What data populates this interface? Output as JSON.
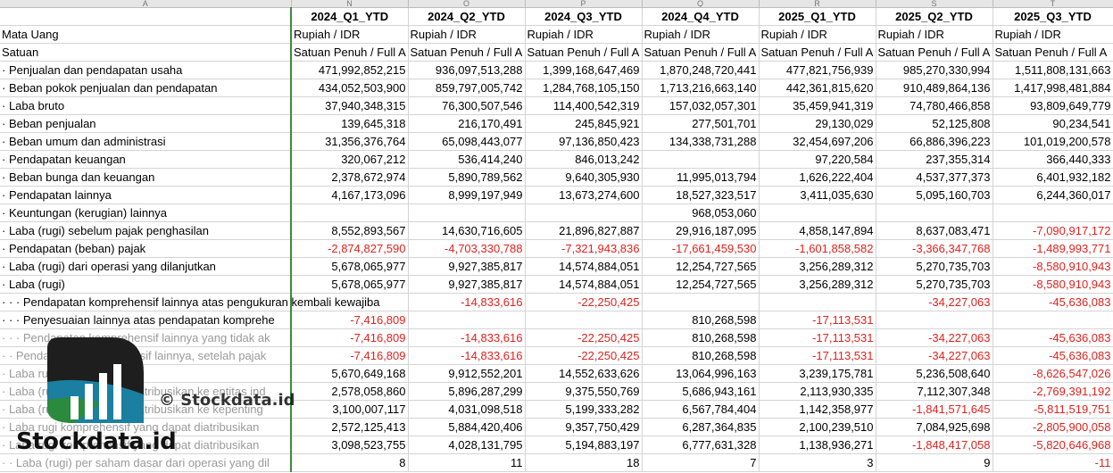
{
  "column_letters": [
    "A",
    "N",
    "O",
    "P",
    "Q",
    "R",
    "S",
    "T"
  ],
  "periods": [
    "2024_Q1_YTD",
    "2024_Q2_YTD",
    "2024_Q3_YTD",
    "2024_Q4_YTD",
    "2025_Q1_YTD",
    "2025_Q2_YTD",
    "2025_Q3_YTD"
  ],
  "meta": [
    {
      "label": "Mata Uang",
      "values": [
        "Rupiah / IDR",
        "Rupiah / IDR",
        "Rupiah / IDR",
        "Rupiah / IDR",
        "Rupiah / IDR",
        "Rupiah / IDR",
        "Rupiah / IDR"
      ]
    },
    {
      "label": "Satuan",
      "values": [
        "Satuan Penuh / Full A",
        "Satuan Penuh / Full A",
        "Satuan Penuh / Full A",
        "Satuan Penuh / Full A",
        "Satuan Penuh / Full A",
        "Satuan Penuh / Full A",
        "Satuan Penuh / Full A"
      ]
    }
  ],
  "rows": [
    {
      "label": "· Penjualan dan pendapatan usaha",
      "values": [
        "471,992,852,215",
        "936,097,513,288",
        "1,399,168,647,469",
        "1,870,248,720,441",
        "477,821,756,939",
        "985,270,330,994",
        "1,511,808,131,663"
      ]
    },
    {
      "label": "· Beban pokok penjualan dan pendapatan",
      "values": [
        "434,052,503,900",
        "859,797,005,742",
        "1,284,768,105,150",
        "1,713,216,663,140",
        "442,361,815,620",
        "910,489,864,136",
        "1,417,998,481,884"
      ]
    },
    {
      "label": "· Laba bruto",
      "values": [
        "37,940,348,315",
        "76,300,507,546",
        "114,400,542,319",
        "157,032,057,301",
        "35,459,941,319",
        "74,780,466,858",
        "93,809,649,779"
      ]
    },
    {
      "label": "· Beban penjualan",
      "values": [
        "139,645,318",
        "216,170,491",
        "245,845,921",
        "277,501,701",
        "29,130,029",
        "52,125,808",
        "90,234,541"
      ]
    },
    {
      "label": "· Beban umum dan administrasi",
      "values": [
        "31,356,376,764",
        "65,098,443,077",
        "97,136,850,423",
        "134,338,731,288",
        "32,454,697,206",
        "66,886,396,223",
        "101,019,200,578"
      ]
    },
    {
      "label": "· Pendapatan keuangan",
      "values": [
        "320,067,212",
        "536,414,240",
        "846,013,242",
        "",
        "97,220,584",
        "237,355,314",
        "366,440,333"
      ]
    },
    {
      "label": "· Beban bunga dan keuangan",
      "values": [
        "2,378,672,974",
        "5,890,789,562",
        "9,640,305,930",
        "11,995,013,794",
        "1,626,222,404",
        "4,537,377,373",
        "6,401,932,182"
      ]
    },
    {
      "label": "· Pendapatan lainnya",
      "values": [
        "4,167,173,096",
        "8,999,197,949",
        "13,673,274,600",
        "18,527,323,517",
        "3,411,035,630",
        "5,095,160,703",
        "6,244,360,017"
      ]
    },
    {
      "label": "· Keuntungan (kerugian) lainnya",
      "values": [
        "",
        "",
        "",
        "968,053,060",
        "",
        "",
        ""
      ]
    },
    {
      "label": "· Laba (rugi) sebelum pajak penghasilan",
      "values": [
        "8,552,893,567",
        "14,630,716,605",
        "21,896,827,887",
        "29,916,187,095",
        "4,858,147,894",
        "8,637,083,471",
        "-7,090,917,172"
      ]
    },
    {
      "label": "· Pendapatan (beban) pajak",
      "values": [
        "-2,874,827,590",
        "-4,703,330,788",
        "-7,321,943,836",
        "-17,661,459,530",
        "-1,601,858,582",
        "-3,366,347,768",
        "-1,489,993,771"
      ]
    },
    {
      "label": "· Laba (rugi) dari operasi yang dilanjutkan",
      "values": [
        "5,678,065,977",
        "9,927,385,817",
        "14,574,884,051",
        "12,254,727,565",
        "3,256,289,312",
        "5,270,735,703",
        "-8,580,910,943"
      ]
    },
    {
      "label": "· Laba (rugi)",
      "values": [
        "5,678,065,977",
        "9,927,385,817",
        "14,574,884,051",
        "12,254,727,565",
        "3,256,289,312",
        "5,270,735,703",
        "-8,580,910,943"
      ]
    },
    {
      "label": "· · · Pendapatan komprehensif lainnya atas pengukuran kembali kewajiba",
      "spill": true,
      "values": [
        "",
        "-14,833,616",
        "-22,250,425",
        "",
        "",
        "-34,227,063",
        "-45,636,083"
      ]
    },
    {
      "label": "· · · Penyesuaian lainnya atas pendapatan komprehe",
      "values": [
        "-7,416,809",
        "",
        "",
        "810,268,598",
        "-17,113,531",
        "",
        ""
      ]
    },
    {
      "label": "· · · Pendapatan komprehensif lainnya yang tidak ak",
      "faded": true,
      "values": [
        "-7,416,809",
        "-14,833,616",
        "-22,250,425",
        "810,268,598",
        "-17,113,531",
        "-34,227,063",
        "-45,636,083"
      ]
    },
    {
      "label": "· · Pendapatan komprehensif lainnya, setelah pajak",
      "faded": true,
      "values": [
        "-7,416,809",
        "-14,833,616",
        "-22,250,425",
        "810,268,598",
        "-17,113,531",
        "-34,227,063",
        "-45,636,083"
      ]
    },
    {
      "label": "· Laba rugi komprehensif",
      "faded": true,
      "values": [
        "5,670,649,168",
        "9,912,552,201",
        "14,552,633,626",
        "13,064,996,163",
        "3,239,175,781",
        "5,236,508,640",
        "-8,626,547,026"
      ]
    },
    {
      "label": "· Laba (rugi) yang dapat diatribusikan ke entitas ind",
      "faded": true,
      "values": [
        "2,578,058,860",
        "5,896,287,299",
        "9,375,550,769",
        "5,686,943,161",
        "2,113,930,335",
        "7,112,307,348",
        "-2,769,391,192"
      ]
    },
    {
      "label": "· Laba (rugi) yang dapat diatribusikan ke kepenting",
      "faded": true,
      "values": [
        "3,100,007,117",
        "4,031,098,518",
        "5,199,333,282",
        "6,567,784,404",
        "1,142,358,977",
        "-1,841,571,645",
        "-5,811,519,751"
      ]
    },
    {
      "label": "· Laba rugi komprehensif yang dapat diatribusikan",
      "faded": true,
      "values": [
        "2,572,125,413",
        "5,884,420,406",
        "9,357,750,429",
        "6,287,364,835",
        "2,100,239,510",
        "7,084,925,698",
        "-2,805,900,058"
      ]
    },
    {
      "label": "· Laba rugi komprehensif yang dapat diatribusikan",
      "faded": true,
      "values": [
        "3,098,523,755",
        "4,028,131,795",
        "5,194,883,197",
        "6,777,631,328",
        "1,138,936,271",
        "-1,848,417,058",
        "-5,820,646,968"
      ]
    },
    {
      "label": "· · Laba (rugi) per saham dasar dari operasi yang dil",
      "faded": true,
      "values": [
        "8",
        "11",
        "18",
        "7",
        "3",
        "9",
        "-11"
      ]
    }
  ],
  "watermark": {
    "brand": "Stockdata.id",
    "copyright": "© Stockdata.id",
    "colors": {
      "dark": "#1e1e1e",
      "teal": "#1a7fa0",
      "green": "#2a8a3e"
    }
  }
}
